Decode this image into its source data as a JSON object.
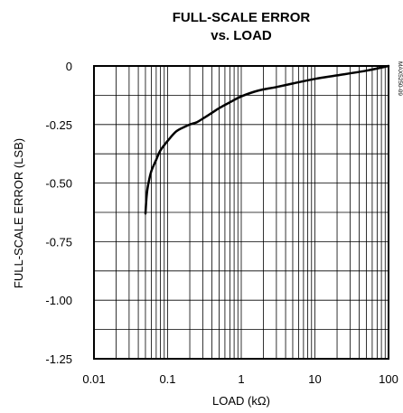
{
  "chart_data": {
    "type": "line",
    "title_line1": "FULL-SCALE ERROR",
    "title_line2": "vs. LOAD",
    "xlabel": "LOAD (kΩ)",
    "ylabel": "FULL-SCALE ERROR (LSB)",
    "figure_code": "MAX5250-09",
    "x_scale": "log",
    "xlim": [
      0.01,
      100
    ],
    "ylim": [
      -1.25,
      0
    ],
    "grid": true,
    "x_ticks": [
      0.01,
      0.1,
      1,
      10,
      100
    ],
    "x_tick_labels": [
      "0.01",
      "0.1",
      "1",
      "10",
      "100"
    ],
    "y_ticks": [
      0,
      -0.25,
      -0.5,
      -0.75,
      -1.0,
      -1.25
    ],
    "y_tick_labels": [
      "0",
      "-0.25",
      "-0.50",
      "-0.75",
      "-1.00",
      "-1.25"
    ],
    "y_minor_step": 0.125,
    "series": [
      {
        "x": [
          0.05,
          0.052,
          0.055,
          0.06,
          0.07,
          0.08,
          0.1,
          0.13,
          0.17,
          0.2,
          0.25,
          0.3,
          0.4,
          0.5,
          0.7,
          1.0,
          1.5,
          2,
          3,
          5,
          10,
          20,
          50,
          100
        ],
        "y": [
          -0.63,
          -0.55,
          -0.5,
          -0.45,
          -0.4,
          -0.36,
          -0.32,
          -0.28,
          -0.26,
          -0.25,
          -0.24,
          -0.225,
          -0.2,
          -0.18,
          -0.155,
          -0.13,
          -0.11,
          -0.1,
          -0.09,
          -0.075,
          -0.055,
          -0.04,
          -0.02,
          0.0
        ]
      }
    ]
  }
}
